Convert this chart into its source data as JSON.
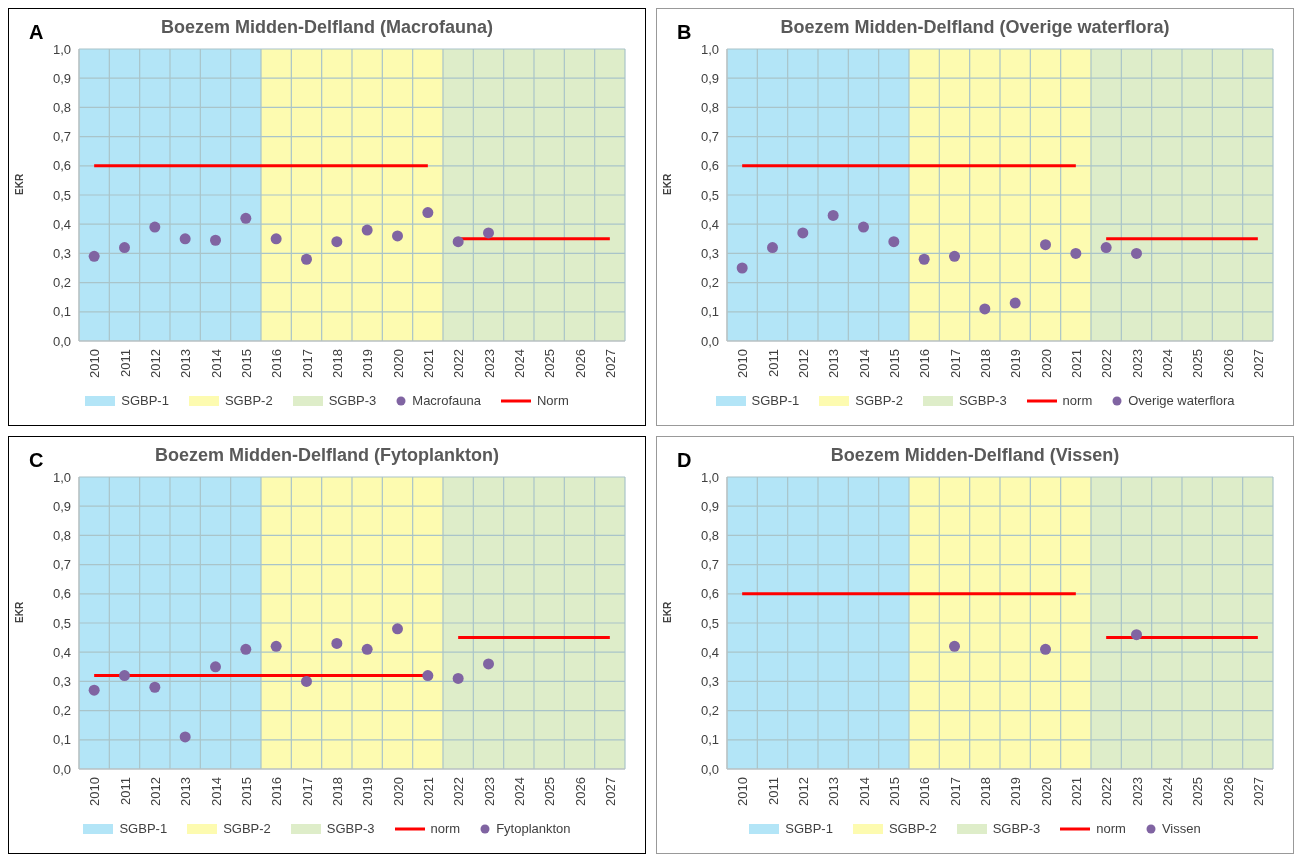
{
  "chart_data": [
    {
      "type": "scatter",
      "title": "Boezem Midden-Delfland (Macrofauna)",
      "ylabel": "EKR",
      "annotations": [
        "A"
      ],
      "categories": [
        "2010",
        "2011",
        "2012",
        "2013",
        "2014",
        "2015",
        "2016",
        "2017",
        "2018",
        "2019",
        "2020",
        "2021",
        "2022",
        "2023",
        "2024",
        "2025",
        "2026",
        "2027"
      ],
      "ylim": [
        0,
        1
      ],
      "yticks": [
        {
          "value": 0,
          "label": "0,0"
        },
        {
          "value": 0.1,
          "label": "0,1"
        },
        {
          "value": 0.2,
          "label": "0,2"
        },
        {
          "value": 0.3,
          "label": "0,3"
        },
        {
          "value": 0.4,
          "label": "0,4"
        },
        {
          "value": 0.5,
          "label": "0,5"
        },
        {
          "value": 0.6,
          "label": "0,6"
        },
        {
          "value": 0.7,
          "label": "0,7"
        },
        {
          "value": 0.8,
          "label": "0,8"
        },
        {
          "value": 0.9,
          "label": "0,9"
        },
        {
          "value": 1,
          "label": "1,0"
        }
      ],
      "grid": true,
      "legend": "bottom",
      "bands": [
        {
          "axis": "x",
          "from": "2010",
          "to": "2015",
          "label": "SGBP-1",
          "color": "#b3e5f7"
        },
        {
          "axis": "x",
          "from": "2016",
          "to": "2021",
          "label": "SGBP-2",
          "color": "#fdfbb0"
        },
        {
          "axis": "x",
          "from": "2022",
          "to": "2027",
          "label": "SGBP-3",
          "color": "#deedc9"
        }
      ],
      "series": [
        {
          "name": "Macrofauna",
          "marker": "circle",
          "color": "#8064a2",
          "values": [
            0.29,
            0.32,
            0.39,
            0.35,
            0.345,
            0.42,
            0.35,
            0.28,
            0.34,
            0.38,
            0.36,
            0.44,
            0.34,
            0.37,
            null,
            null,
            null,
            null
          ]
        },
        {
          "name": "Norm",
          "type": "line",
          "color": "#ff0000",
          "values": [
            0.6,
            0.6,
            0.6,
            0.6,
            0.6,
            0.6,
            0.6,
            0.6,
            0.6,
            0.6,
            0.6,
            0.6,
            null,
            null,
            null,
            null,
            null,
            null
          ]
        },
        {
          "type": "line",
          "color": "#ff0000",
          "values": [
            null,
            null,
            null,
            null,
            null,
            null,
            null,
            null,
            null,
            null,
            null,
            null,
            0.35,
            0.35,
            0.35,
            0.35,
            0.35,
            0.35
          ]
        }
      ]
    },
    {
      "type": "scatter",
      "title": "Boezem Midden-Delfland (Overige waterflora)",
      "ylabel": "EKR",
      "annotations": [
        "B"
      ],
      "categories": [
        "2010",
        "2011",
        "2012",
        "2013",
        "2014",
        "2015",
        "2016",
        "2017",
        "2018",
        "2019",
        "2020",
        "2021",
        "2022",
        "2023",
        "2024",
        "2025",
        "2026",
        "2027"
      ],
      "ylim": [
        0,
        1
      ],
      "yticks": [
        {
          "value": 0,
          "label": "0,0"
        },
        {
          "value": 0.1,
          "label": "0,1"
        },
        {
          "value": 0.2,
          "label": "0,2"
        },
        {
          "value": 0.3,
          "label": "0,3"
        },
        {
          "value": 0.4,
          "label": "0,4"
        },
        {
          "value": 0.5,
          "label": "0,5"
        },
        {
          "value": 0.6,
          "label": "0,6"
        },
        {
          "value": 0.7,
          "label": "0,7"
        },
        {
          "value": 0.8,
          "label": "0,8"
        },
        {
          "value": 0.9,
          "label": "0,9"
        },
        {
          "value": 1,
          "label": "1,0"
        }
      ],
      "grid": true,
      "legend": "bottom",
      "bands": [
        {
          "axis": "x",
          "from": "2010",
          "to": "2015",
          "label": "SGBP-1",
          "color": "#b3e5f7"
        },
        {
          "axis": "x",
          "from": "2016",
          "to": "2021",
          "label": "SGBP-2",
          "color": "#fdfbb0"
        },
        {
          "axis": "x",
          "from": "2022",
          "to": "2027",
          "label": "SGBP-3",
          "color": "#deedc9"
        }
      ],
      "series": [
        {
          "name": "norm",
          "type": "line",
          "color": "#ff0000",
          "values": [
            0.6,
            0.6,
            0.6,
            0.6,
            0.6,
            0.6,
            0.6,
            0.6,
            0.6,
            0.6,
            0.6,
            0.6,
            null,
            null,
            null,
            null,
            null,
            null
          ]
        },
        {
          "type": "line",
          "color": "#ff0000",
          "values": [
            null,
            null,
            null,
            null,
            null,
            null,
            null,
            null,
            null,
            null,
            null,
            null,
            0.35,
            0.35,
            0.35,
            0.35,
            0.35,
            0.35
          ]
        },
        {
          "name": "Overige waterflora",
          "marker": "circle",
          "color": "#8064a2",
          "values": [
            0.25,
            0.32,
            0.37,
            0.43,
            0.39,
            0.34,
            0.28,
            0.29,
            0.11,
            0.13,
            0.33,
            0.3,
            0.32,
            0.3,
            null,
            null,
            null,
            null
          ]
        }
      ]
    },
    {
      "type": "scatter",
      "title": "Boezem Midden-Delfland (Fytoplankton)",
      "ylabel": "EKR",
      "annotations": [
        "C"
      ],
      "categories": [
        "2010",
        "2011",
        "2012",
        "2013",
        "2014",
        "2015",
        "2016",
        "2017",
        "2018",
        "2019",
        "2020",
        "2021",
        "2022",
        "2023",
        "2024",
        "2025",
        "2026",
        "2027"
      ],
      "ylim": [
        0,
        1
      ],
      "yticks": [
        {
          "value": 0,
          "label": "0,0"
        },
        {
          "value": 0.1,
          "label": "0,1"
        },
        {
          "value": 0.2,
          "label": "0,2"
        },
        {
          "value": 0.3,
          "label": "0,3"
        },
        {
          "value": 0.4,
          "label": "0,4"
        },
        {
          "value": 0.5,
          "label": "0,5"
        },
        {
          "value": 0.6,
          "label": "0,6"
        },
        {
          "value": 0.7,
          "label": "0,7"
        },
        {
          "value": 0.8,
          "label": "0,8"
        },
        {
          "value": 0.9,
          "label": "0,9"
        },
        {
          "value": 1,
          "label": "1,0"
        }
      ],
      "grid": true,
      "legend": "bottom",
      "bands": [
        {
          "axis": "x",
          "from": "2010",
          "to": "2015",
          "label": "SGBP-1",
          "color": "#b3e5f7"
        },
        {
          "axis": "x",
          "from": "2016",
          "to": "2021",
          "label": "SGBP-2",
          "color": "#fdfbb0"
        },
        {
          "axis": "x",
          "from": "2022",
          "to": "2027",
          "label": "SGBP-3",
          "color": "#deedc9"
        }
      ],
      "series": [
        {
          "name": "norm",
          "type": "line",
          "color": "#ff0000",
          "values": [
            0.32,
            0.32,
            0.32,
            0.32,
            0.32,
            0.32,
            0.32,
            0.32,
            0.32,
            0.32,
            0.32,
            0.32,
            null,
            null,
            null,
            null,
            null,
            null
          ]
        },
        {
          "type": "line",
          "color": "#ff0000",
          "values": [
            null,
            null,
            null,
            null,
            null,
            null,
            null,
            null,
            null,
            null,
            null,
            null,
            0.45,
            0.45,
            0.45,
            0.45,
            0.45,
            0.45
          ]
        },
        {
          "name": "Fytoplankton",
          "marker": "circle",
          "color": "#8064a2",
          "values": [
            0.27,
            0.32,
            0.28,
            0.11,
            0.35,
            0.41,
            0.42,
            0.3,
            0.43,
            0.41,
            0.48,
            0.32,
            0.31,
            0.36,
            null,
            null,
            null,
            null
          ]
        }
      ]
    },
    {
      "type": "scatter",
      "title": "Boezem Midden-Delfland (Vissen)",
      "ylabel": "EKR",
      "annotations": [
        "D"
      ],
      "categories": [
        "2010",
        "2011",
        "2012",
        "2013",
        "2014",
        "2015",
        "2016",
        "2017",
        "2018",
        "2019",
        "2020",
        "2021",
        "2022",
        "2023",
        "2024",
        "2025",
        "2026",
        "2027"
      ],
      "ylim": [
        0,
        1
      ],
      "yticks": [
        {
          "value": 0,
          "label": "0,0"
        },
        {
          "value": 0.1,
          "label": "0,1"
        },
        {
          "value": 0.2,
          "label": "0,2"
        },
        {
          "value": 0.3,
          "label": "0,3"
        },
        {
          "value": 0.4,
          "label": "0,4"
        },
        {
          "value": 0.5,
          "label": "0,5"
        },
        {
          "value": 0.6,
          "label": "0,6"
        },
        {
          "value": 0.7,
          "label": "0,7"
        },
        {
          "value": 0.8,
          "label": "0,8"
        },
        {
          "value": 0.9,
          "label": "0,9"
        },
        {
          "value": 1,
          "label": "1,0"
        }
      ],
      "grid": true,
      "legend": "bottom",
      "bands": [
        {
          "axis": "x",
          "from": "2010",
          "to": "2015",
          "label": "SGBP-1",
          "color": "#b3e5f7"
        },
        {
          "axis": "x",
          "from": "2016",
          "to": "2021",
          "label": "SGBP-2",
          "color": "#fdfbb0"
        },
        {
          "axis": "x",
          "from": "2022",
          "to": "2027",
          "label": "SGBP-3",
          "color": "#deedc9"
        }
      ],
      "series": [
        {
          "name": "norm",
          "type": "line",
          "color": "#ff0000",
          "values": [
            0.6,
            0.6,
            0.6,
            0.6,
            0.6,
            0.6,
            0.6,
            0.6,
            0.6,
            0.6,
            0.6,
            0.6,
            null,
            null,
            null,
            null,
            null,
            null
          ]
        },
        {
          "type": "line",
          "color": "#ff0000",
          "values": [
            null,
            null,
            null,
            null,
            null,
            null,
            null,
            null,
            null,
            null,
            null,
            null,
            0.45,
            0.45,
            0.45,
            0.45,
            0.45,
            0.45
          ]
        },
        {
          "name": "Vissen",
          "marker": "circle",
          "color": "#8064a2",
          "values": [
            null,
            null,
            null,
            null,
            null,
            null,
            null,
            0.42,
            null,
            null,
            0.41,
            null,
            null,
            0.46,
            null,
            null,
            null,
            null
          ]
        }
      ]
    }
  ]
}
